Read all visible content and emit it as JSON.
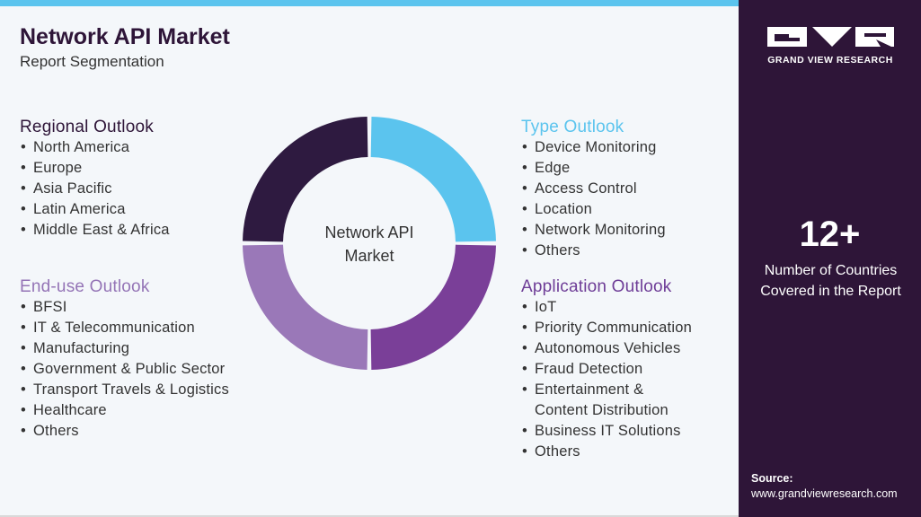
{
  "header": {
    "title": "Network API Market",
    "subtitle": "Report Segmentation"
  },
  "segments": [
    {
      "heading": "Regional Outlook",
      "items": [
        "North America",
        "Europe",
        "Asia Pacific",
        "Latin America",
        "Middle East & Africa"
      ]
    },
    {
      "heading": "End-use Outlook",
      "items": [
        "BFSI",
        "IT & Telecommunication",
        "Manufacturing",
        "Government & Public Sector",
        "Transport Travels & Logistics",
        "Healthcare",
        "Others"
      ]
    },
    {
      "heading": "Type Outlook",
      "items": [
        "Device Monitoring",
        "Edge",
        "Access Control",
        "Location",
        "Network Monitoring",
        "Others"
      ]
    },
    {
      "heading": "Application Outlook",
      "items": [
        "IoT",
        "Priority Communication",
        "Autonomous Vehicles",
        "Fraud Detection",
        {
          "lines": [
            "Entertainment &",
            "Content Distribution"
          ]
        },
        "Business IT Solutions",
        "Others"
      ]
    }
  ],
  "center_label": [
    "Network API",
    "Market"
  ],
  "brand": {
    "name": "GRAND VIEW RESEARCH"
  },
  "stat": {
    "value": "12+",
    "label": "Number of Countries Covered in the Report"
  },
  "source": {
    "label": "Source:",
    "url": "www.grandviewresearch.com"
  }
}
